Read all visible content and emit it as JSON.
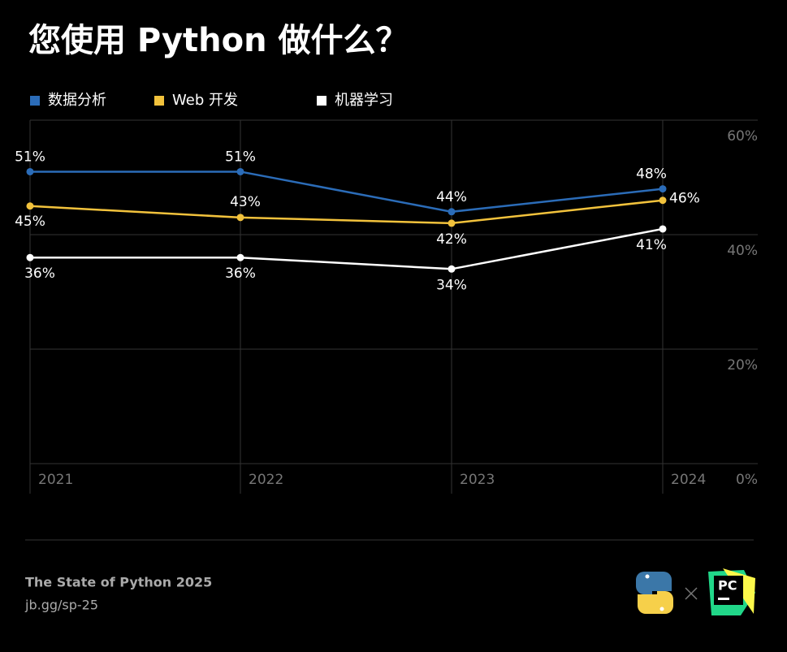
{
  "chart_data": {
    "type": "line",
    "title": "您使用 Python 做什么？",
    "categories": [
      "2021",
      "2022",
      "2023",
      "2024"
    ],
    "series": [
      {
        "name": "数据分析",
        "color": "#2b6cb8",
        "values": [
          51,
          51,
          44,
          48
        ],
        "value_labels": [
          "51%",
          "51%",
          "44%",
          "48%"
        ]
      },
      {
        "name": "Web 开发",
        "color": "#f2c23c",
        "values": [
          45,
          43,
          42,
          46
        ],
        "value_labels": [
          "45%",
          "43%",
          "42%",
          "46%"
        ]
      },
      {
        "name": "机器学习",
        "color": "#ffffff",
        "values": [
          36,
          36,
          34,
          41
        ],
        "value_labels": [
          "36%",
          "36%",
          "34%",
          "41%"
        ]
      }
    ],
    "ylim": [
      0,
      60
    ],
    "yticks": [
      {
        "value": 0,
        "label": "0%"
      },
      {
        "value": 20,
        "label": "20%"
      },
      {
        "value": 40,
        "label": "40%"
      },
      {
        "value": 60,
        "label": "60%"
      }
    ],
    "grid": true,
    "legend": "top"
  },
  "footer": {
    "source": "The State of Python 2025",
    "link": "jb.gg/sp-25",
    "logo_text": "PC"
  }
}
